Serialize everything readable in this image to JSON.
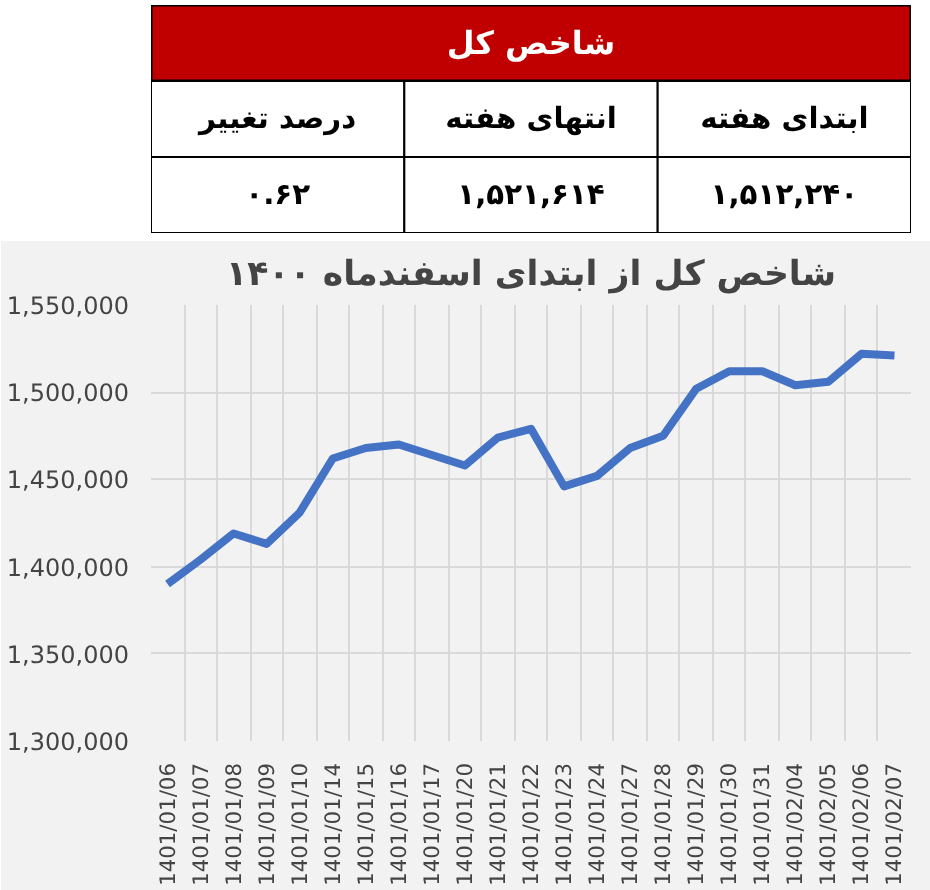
{
  "chart_data": [
    {
      "type": "other",
      "title": "شاخص کل",
      "color": "#c00000",
      "categories": [
        "درصد تغییر",
        "انتهای هفته",
        "ابتدای هفته"
      ],
      "value_labels": [
        "۰.۶۲",
        "۱,۵۲۱,۶۱۴",
        "۱,۵۱۲,۲۴۰"
      ]
    },
    {
      "type": "line",
      "title": "شاخص کل از ابتدای اسفندماه ۱۴۰۰",
      "categories": [
        "1401/01/06",
        "1401/01/07",
        "1401/01/08",
        "1401/01/09",
        "1401/01/10",
        "1401/01/14",
        "1401/01/15",
        "1401/01/16",
        "1401/01/17",
        "1401/01/20",
        "1401/01/21",
        "1401/01/22",
        "1401/01/23",
        "1401/01/24",
        "1401/01/27",
        "1401/01/28",
        "1401/01/29",
        "1401/01/30",
        "1401/01/31",
        "1401/02/04",
        "1401/02/05",
        "1401/02/06",
        "1401/02/07"
      ],
      "series": [
        {
          "color": "#4472c4",
          "values": [
            1390000,
            1404000,
            1419000,
            1413000,
            1431000,
            1462000,
            1468000,
            1470000,
            1464000,
            1458000,
            1474000,
            1479000,
            1446000,
            1452000,
            1468000,
            1475000,
            1502000,
            1512000,
            1512000,
            1504000,
            1506000,
            1522000,
            1521000
          ]
        }
      ],
      "ylim": [
        1300000,
        1550000
      ],
      "yticks": [
        {
          "value": 1300000,
          "label": "1,300,000"
        },
        {
          "value": 1350000,
          "label": "1,350,000"
        },
        {
          "value": 1400000,
          "label": "1,400,000"
        },
        {
          "value": 1450000,
          "label": "1,450,000"
        },
        {
          "value": 1500000,
          "label": "1,500,000"
        },
        {
          "value": 1550000,
          "label": "1,550,000"
        }
      ],
      "grid": true,
      "marker": "none",
      "line_style": "solid"
    }
  ]
}
